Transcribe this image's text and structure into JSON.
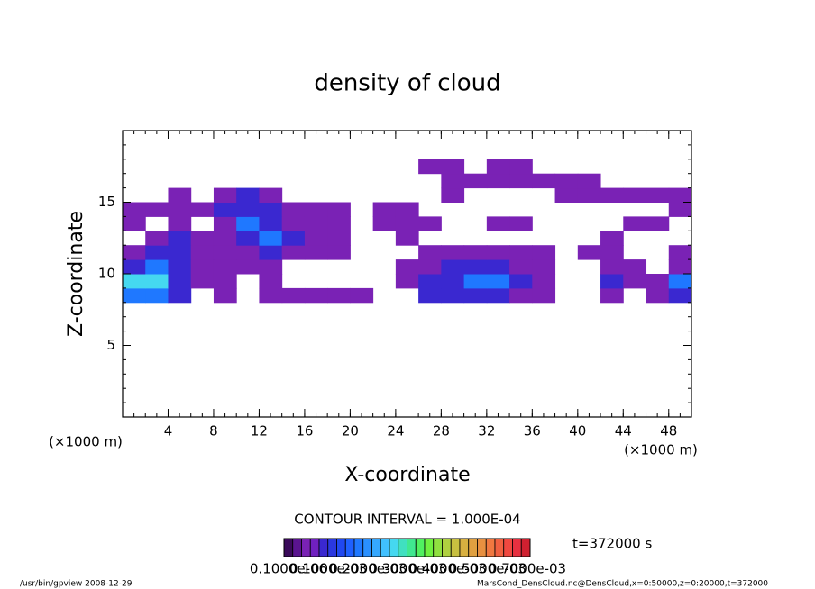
{
  "chart_data": {
    "type": "heatmap",
    "title": "density of cloud",
    "x_label": "X-coordinate",
    "y_label": "Z-coordinate",
    "x_unit": "(×1000 m)",
    "y_unit": "(×1000 m)",
    "xlim": [
      0,
      50
    ],
    "ylim": [
      0,
      20
    ],
    "xticks": [
      4,
      8,
      12,
      16,
      20,
      24,
      28,
      32,
      36,
      40,
      44,
      48
    ],
    "yticks": [
      5,
      10,
      15
    ],
    "minor_ticks": true,
    "x": [
      1,
      3,
      5,
      7,
      9,
      11,
      13,
      15,
      17,
      19,
      21,
      23,
      25,
      27,
      29,
      31,
      33,
      35,
      37,
      39,
      41,
      43,
      45,
      47,
      49
    ],
    "y": [
      8.5,
      9.5,
      10.5,
      11.5,
      12.5,
      13.5,
      14.5,
      15.5,
      16.5,
      17.5
    ],
    "values": [
      [
        0.0002,
        0.0002,
        0.0001,
        null,
        5e-05,
        null,
        5e-05,
        5e-05,
        5e-05,
        5e-05,
        5e-05,
        null,
        null,
        0.0001,
        0.0001,
        0.0001,
        0.0001,
        5e-05,
        5e-05,
        null,
        null,
        5e-05,
        null,
        5e-05,
        0.0001
      ],
      [
        0.0003,
        0.0003,
        0.0001,
        5e-05,
        5e-05,
        null,
        5e-05,
        null,
        null,
        null,
        null,
        null,
        5e-05,
        0.0001,
        0.0001,
        0.0002,
        0.0002,
        0.0001,
        5e-05,
        null,
        null,
        0.0001,
        5e-05,
        5e-05,
        0.0002
      ],
      [
        0.0001,
        0.0002,
        0.0001,
        5e-05,
        5e-05,
        5e-05,
        5e-05,
        null,
        null,
        null,
        null,
        null,
        5e-05,
        5e-05,
        0.0001,
        0.0001,
        0.0001,
        5e-05,
        5e-05,
        null,
        null,
        5e-05,
        5e-05,
        null,
        5e-05
      ],
      [
        5e-05,
        0.0001,
        0.0001,
        5e-05,
        5e-05,
        5e-05,
        0.0001,
        5e-05,
        5e-05,
        5e-05,
        null,
        null,
        null,
        5e-05,
        5e-05,
        5e-05,
        5e-05,
        5e-05,
        5e-05,
        null,
        5e-05,
        5e-05,
        null,
        null,
        5e-05
      ],
      [
        null,
        5e-05,
        0.0001,
        5e-05,
        5e-05,
        0.0001,
        0.0002,
        0.0001,
        5e-05,
        5e-05,
        null,
        null,
        5e-05,
        null,
        null,
        null,
        null,
        null,
        null,
        null,
        null,
        5e-05,
        null,
        null,
        null
      ],
      [
        5e-05,
        null,
        5e-05,
        null,
        5e-05,
        0.0002,
        0.0001,
        5e-05,
        5e-05,
        5e-05,
        null,
        5e-05,
        5e-05,
        5e-05,
        null,
        null,
        5e-05,
        5e-05,
        null,
        null,
        null,
        null,
        5e-05,
        5e-05,
        null
      ],
      [
        5e-05,
        5e-05,
        5e-05,
        5e-05,
        0.0001,
        0.0001,
        0.0001,
        5e-05,
        5e-05,
        5e-05,
        null,
        5e-05,
        5e-05,
        null,
        null,
        null,
        null,
        null,
        null,
        null,
        null,
        null,
        null,
        null,
        5e-05
      ],
      [
        null,
        null,
        5e-05,
        null,
        5e-05,
        0.0001,
        5e-05,
        null,
        null,
        null,
        null,
        null,
        null,
        null,
        5e-05,
        null,
        null,
        null,
        null,
        5e-05,
        5e-05,
        5e-05,
        5e-05,
        5e-05,
        5e-05
      ],
      [
        null,
        null,
        null,
        null,
        null,
        null,
        null,
        null,
        null,
        null,
        null,
        null,
        null,
        null,
        5e-05,
        5e-05,
        5e-05,
        5e-05,
        5e-05,
        5e-05,
        5e-05,
        null,
        null,
        null,
        null
      ],
      [
        null,
        null,
        null,
        null,
        null,
        null,
        null,
        null,
        null,
        null,
        null,
        null,
        null,
        5e-05,
        5e-05,
        null,
        5e-05,
        5e-05,
        null,
        null,
        null,
        null,
        null,
        null,
        null
      ]
    ],
    "clim": [
      0,
      0.0007
    ],
    "colorbar": {
      "colors": [
        "#3a0a5a",
        "#5a1490",
        "#7a22b5",
        "#7020c0",
        "#3a28d0",
        "#2a38e0",
        "#2048f0",
        "#1f60ff",
        "#1f78ff",
        "#2a90ff",
        "#35a8ff",
        "#40c0ff",
        "#45d8f0",
        "#40e0c0",
        "#40e890",
        "#50f060",
        "#70f040",
        "#90e040",
        "#b0d040",
        "#c8c040",
        "#d8b040",
        "#e0a040",
        "#e89040",
        "#f07840",
        "#f06040",
        "#f04840",
        "#e83040",
        "#d02030"
      ],
      "labels": [
        "0.1000e-06",
        "0.1000e-03",
        "0.2000e-03",
        "0.3000e-03",
        "0.4000e-03",
        "0.5000e-03",
        "0.7000e-03"
      ]
    },
    "contour_interval": "CONTOUR INTERVAL = 1.000E-04",
    "time_label": "t=372000 s",
    "footer_left": "/usr/bin/gpview  2008-12-29",
    "footer_right": "MarsCond_DensCloud.nc@DensCloud,x=0:50000,z=0:20000,t=372000"
  }
}
